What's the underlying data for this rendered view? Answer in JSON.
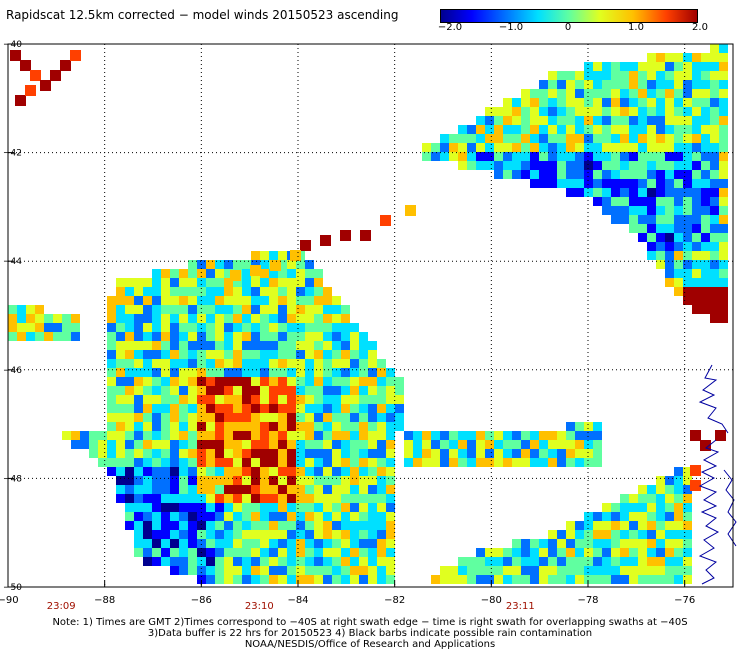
{
  "title": "Rapidscat 12.5km corrected − model winds 20150523 ascending",
  "colorbar": {
    "labels": [
      "−2.0",
      "−1.0",
      "0",
      "1.0",
      "2.0"
    ],
    "colors": [
      "#00008f",
      "#0000ff",
      "#0070ff",
      "#00e0ff",
      "#60ffa0",
      "#e0ff20",
      "#ffc000",
      "#ff4000",
      "#a00000"
    ]
  },
  "map": {
    "lon_range": [
      -90,
      -75
    ],
    "lat_range": [
      -50,
      -40
    ],
    "x_ticks": [
      "−90",
      "−88",
      "−86",
      "−84",
      "−82",
      "−80",
      "−78",
      "−76"
    ],
    "y_ticks": [
      "−40",
      "−42",
      "−44",
      "−46",
      "−48",
      "−50"
    ],
    "x_tick_values": [
      -90,
      -88,
      -86,
      -84,
      -82,
      -80,
      -78,
      -76
    ],
    "y_tick_values": [
      -40,
      -42,
      -44,
      -46,
      -48,
      -50
    ],
    "times": [
      {
        "label": "23:09",
        "lon": -88.9
      },
      {
        "label": "23:10",
        "lon": -84.8
      },
      {
        "label": "23:11",
        "lon": -79.4
      }
    ],
    "time_color": "#a01000",
    "coast_color": "#0000a0"
  },
  "notes": [
    "Note: 1) Times are GMT 2)Times correspond to −40S at right swath edge − time is right swath for overlapping swaths at −40S",
    "3)Data buffer is 22 hrs for 20150523 4) Black barbs indicate possible rain contamination",
    "NOAA/NESDIS/Office of Research and Applications"
  ]
}
